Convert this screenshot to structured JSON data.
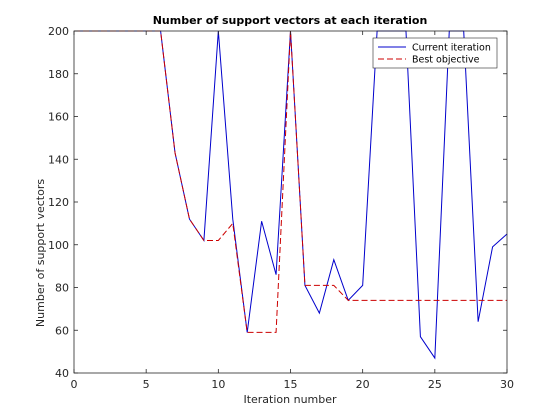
{
  "chart_data": {
    "type": "line",
    "title": "Number of support vectors at each iteration",
    "xlabel": "Iteration number",
    "ylabel": "Number of support vectors",
    "xlim": [
      0,
      30
    ],
    "ylim": [
      40,
      200
    ],
    "xticks": [
      0,
      5,
      10,
      15,
      20,
      25,
      30
    ],
    "yticks": [
      40,
      60,
      80,
      100,
      120,
      140,
      160,
      180,
      200
    ],
    "grid": false,
    "legend_position": "top-right",
    "series": [
      {
        "name": "Current iteration",
        "color": "#0000cc",
        "dash": "solid",
        "x": [
          0,
          1,
          2,
          3,
          4,
          5,
          6,
          7,
          8,
          9,
          10,
          11,
          12,
          13,
          14,
          15,
          16,
          17,
          18,
          19,
          20,
          21,
          22,
          23,
          24,
          25,
          26,
          27,
          28,
          29,
          30
        ],
        "y": [
          200,
          200,
          200,
          200,
          200,
          200,
          200,
          143,
          112,
          102,
          200,
          112,
          59,
          111,
          86,
          200,
          81,
          68,
          93,
          74,
          81,
          200,
          200,
          200,
          57,
          47,
          200,
          200,
          64,
          99,
          105
        ]
      },
      {
        "name": "Best objective",
        "color": "#cc0000",
        "dash": "dashed",
        "x": [
          0,
          1,
          2,
          3,
          4,
          5,
          6,
          7,
          8,
          9,
          10,
          11,
          12,
          13,
          14,
          15,
          16,
          17,
          18,
          19,
          20,
          21,
          22,
          23,
          24,
          25,
          26,
          27,
          28,
          29,
          30
        ],
        "y": [
          200,
          200,
          200,
          200,
          200,
          200,
          200,
          143,
          112,
          102,
          102,
          110,
          59,
          59,
          59,
          200,
          81,
          81,
          81,
          74,
          74,
          74,
          74,
          74,
          74,
          74,
          74,
          74,
          74,
          74,
          74
        ]
      }
    ]
  }
}
